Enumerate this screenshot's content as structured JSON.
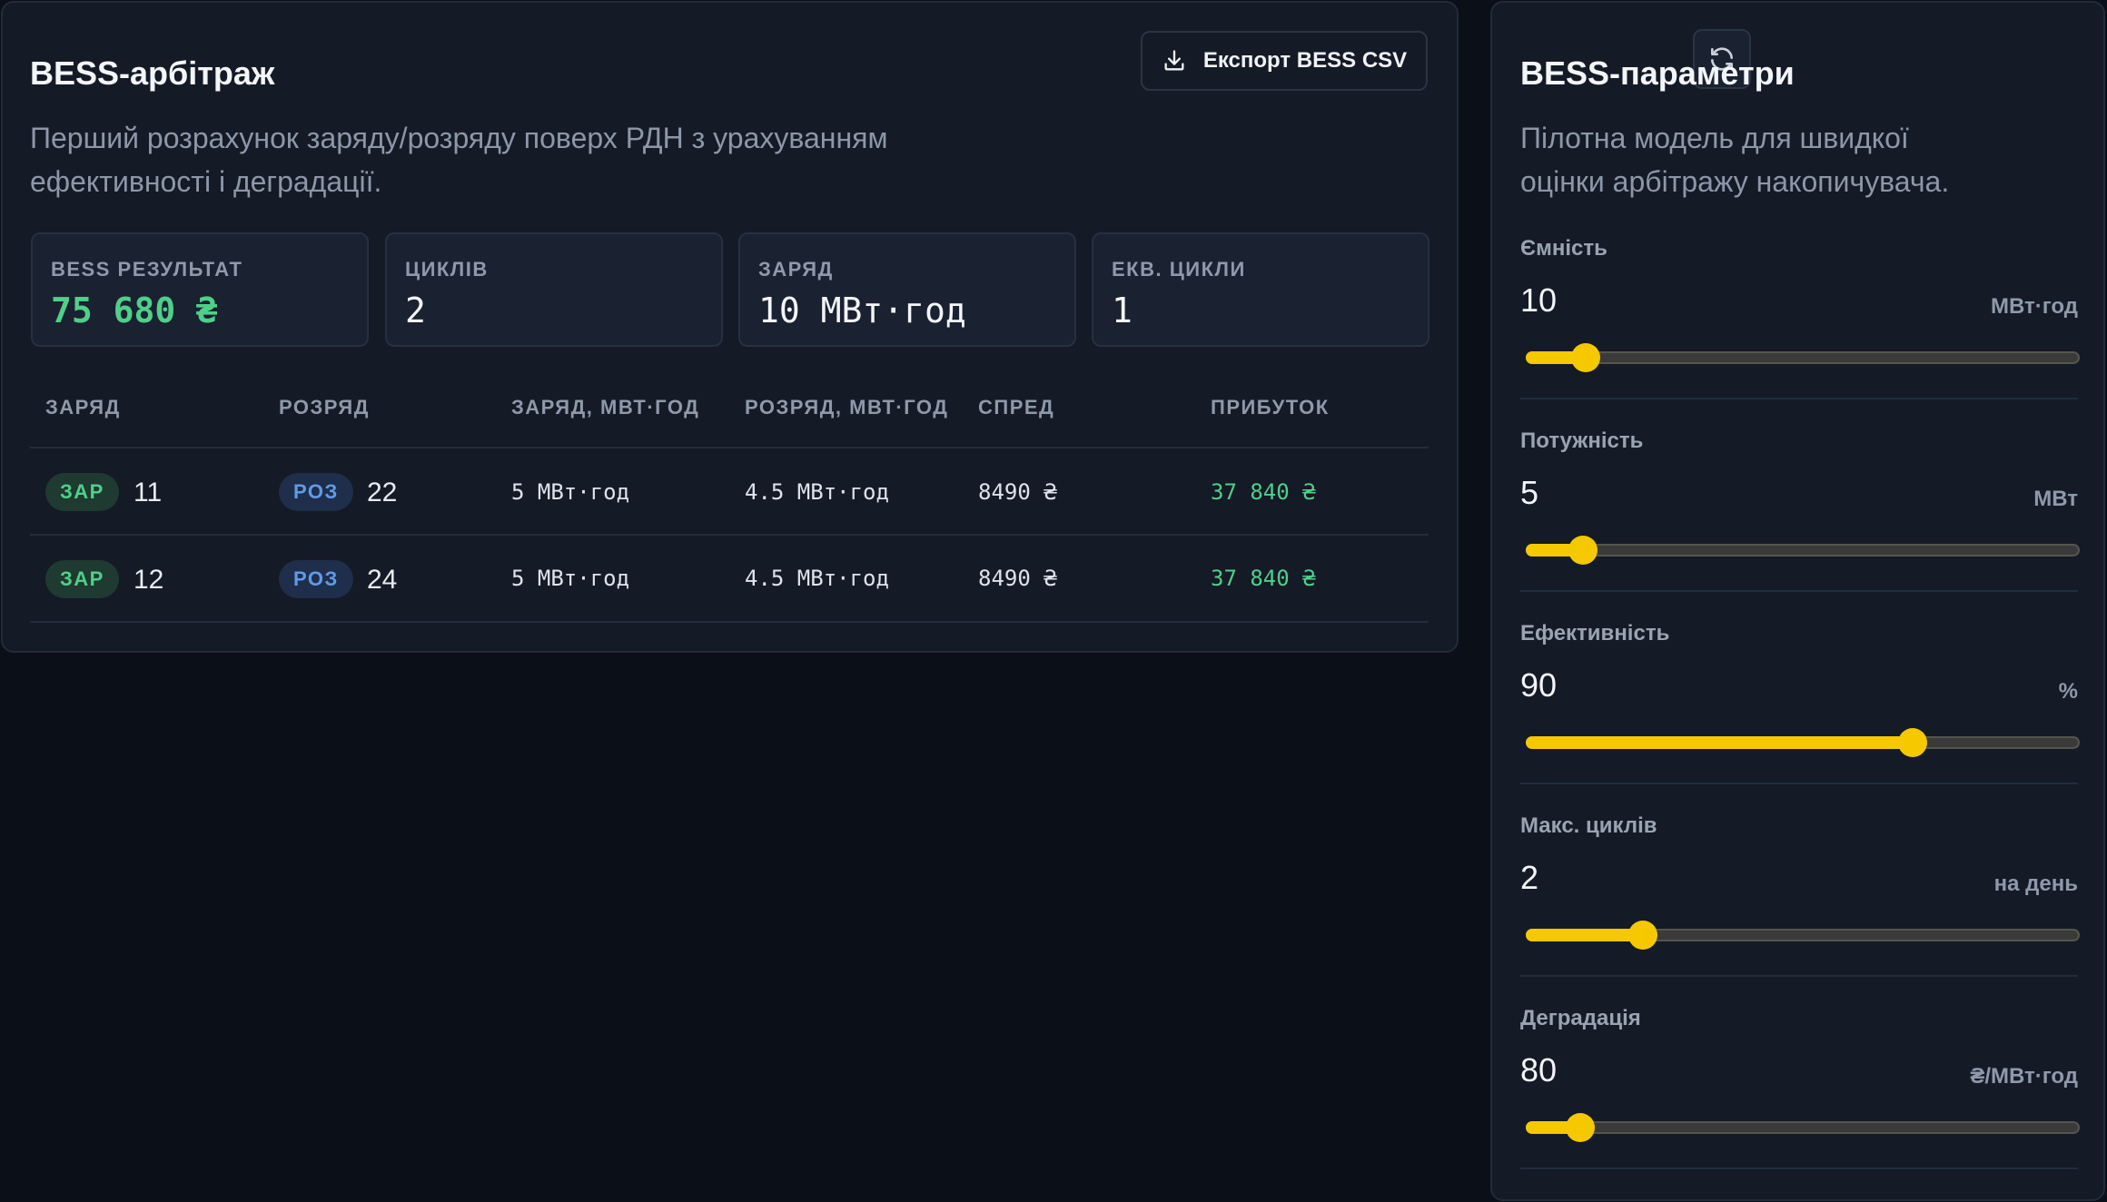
{
  "arbitrage": {
    "title": "BESS-арбітраж",
    "description": "Перший розрахунок заряду/розряду поверх РДН з урахуванням ефективності і деградації.",
    "export_label": "Експорт BESS CSV",
    "stats": [
      {
        "label": "BESS РЕЗУЛЬТАТ",
        "value": "75 680 ₴"
      },
      {
        "label": "ЦИКЛІВ",
        "value": "2"
      },
      {
        "label": "ЗАРЯД",
        "value": "10 МВт·год"
      },
      {
        "label": "ЕКВ. ЦИКЛИ",
        "value": "1"
      }
    ],
    "table": {
      "headers": [
        "ЗАРЯД",
        "РОЗРЯД",
        "ЗАРЯД, МВТ·ГОД",
        "РОЗРЯД, МВТ·ГОД",
        "СПРЕД",
        "ПРИБУТОК"
      ],
      "rows": [
        {
          "charge_tag": "ЗАР",
          "charge_hour": "11",
          "discharge_tag": "РОЗ",
          "discharge_hour": "22",
          "charge_mwh": "5 МВт·год",
          "discharge_mwh": "4.5 МВт·год",
          "spread": "8490 ₴",
          "profit": "37 840 ₴"
        },
        {
          "charge_tag": "ЗАР",
          "charge_hour": "12",
          "discharge_tag": "РОЗ",
          "discharge_hour": "24",
          "charge_mwh": "5 МВт·год",
          "discharge_mwh": "4.5 МВт·год",
          "spread": "8490 ₴",
          "profit": "37 840 ₴"
        }
      ]
    }
  },
  "params": {
    "title": "BESS-параметри",
    "description": "Пілотна модель для швидкої оцінки арбітражу накопичувача.",
    "refresh_icon": "refresh-icon",
    "sliders": [
      {
        "label": "Ємність",
        "value": "10",
        "unit": "МВт·год",
        "level": 0.105
      },
      {
        "label": "Потужність",
        "value": "5",
        "unit": "МВт",
        "level": 0.1
      },
      {
        "label": "Ефективність",
        "value": "90",
        "unit": "%",
        "level": 0.7
      },
      {
        "label": "Макс. циклів",
        "value": "2",
        "unit": "на день",
        "level": 0.21
      },
      {
        "label": "Деградація",
        "value": "80",
        "unit": "₴/МВт·год",
        "level": 0.095
      }
    ]
  },
  "colors": {
    "accent_yellow": "#f5c800",
    "profit_green": "#4fcf8a",
    "discharge_blue": "#5f9be8",
    "background": "#0b0f17",
    "panel": "#141a26"
  }
}
